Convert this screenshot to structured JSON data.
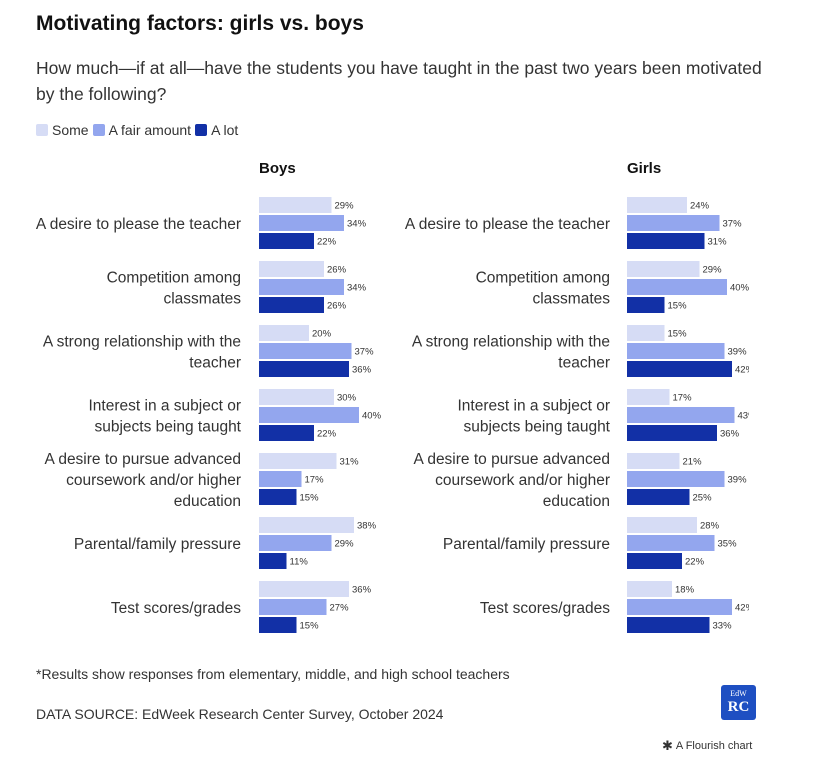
{
  "title": "Motivating factors: girls vs. boys",
  "subtitle": "How much—if at all—have the students you have taught in the past two years been motivated by the following?",
  "legend": [
    {
      "label": "Some",
      "color": "#d6dcf5"
    },
    {
      "label": "A fair amount",
      "color": "#93a6ee"
    },
    {
      "label": "A lot",
      "color": "#1230a6"
    }
  ],
  "footnote": "*Results show responses from elementary, middle, and high school teachers",
  "source": "DATA SOURCE: EdWeek Research Center Survey, October 2024",
  "logo": {
    "top": "EdW",
    "bottom": "RC"
  },
  "credit": "A Flourish chart",
  "credit_icon": "flourish-asterisk-icon",
  "chart_data": [
    {
      "type": "bar",
      "title": "Boys",
      "categories": [
        "A desire to please the teacher",
        "Competition among classmates",
        "A strong relationship with the teacher",
        "Interest in a subject or subjects being taught",
        "A desire to pursue advanced coursework and/or higher education",
        "Parental/family pressure",
        "Test scores/grades"
      ],
      "category_lines": [
        [
          "A desire to please the teacher"
        ],
        [
          "Competition among",
          "classmates"
        ],
        [
          "A strong relationship with the",
          "teacher"
        ],
        [
          "Interest in a subject or",
          "subjects being taught"
        ],
        [
          "A desire to pursue advanced",
          "coursework and/or higher",
          "education"
        ],
        [
          "Parental/family pressure"
        ],
        [
          "Test scores/grades"
        ]
      ],
      "series": [
        {
          "name": "Some",
          "values": [
            29,
            26,
            20,
            30,
            31,
            38,
            36
          ]
        },
        {
          "name": "A fair amount",
          "values": [
            34,
            34,
            37,
            40,
            17,
            29,
            27
          ]
        },
        {
          "name": "A lot",
          "values": [
            22,
            26,
            36,
            22,
            15,
            11,
            15
          ]
        }
      ],
      "unit": "%"
    },
    {
      "type": "bar",
      "title": "Girls",
      "categories": [
        "A desire to please the teacher",
        "Competition among classmates",
        "A strong relationship with the teacher",
        "Interest in a subject or subjects being taught",
        "A desire to pursue advanced coursework and/or higher education",
        "Parental/family pressure",
        "Test scores/grades"
      ],
      "category_lines": [
        [
          "A desire to please the teacher"
        ],
        [
          "Competition among",
          "classmates"
        ],
        [
          "A strong relationship with the",
          "teacher"
        ],
        [
          "Interest in a subject or",
          "subjects being taught"
        ],
        [
          "A desire to pursue advanced",
          "coursework and/or higher",
          "education"
        ],
        [
          "Parental/family pressure"
        ],
        [
          "Test scores/grades"
        ]
      ],
      "series": [
        {
          "name": "Some",
          "values": [
            24,
            29,
            15,
            17,
            21,
            28,
            18
          ]
        },
        {
          "name": "A fair amount",
          "values": [
            37,
            40,
            39,
            43,
            39,
            35,
            42
          ]
        },
        {
          "name": "A lot",
          "values": [
            31,
            15,
            42,
            36,
            25,
            22,
            33
          ]
        }
      ],
      "unit": "%"
    }
  ]
}
